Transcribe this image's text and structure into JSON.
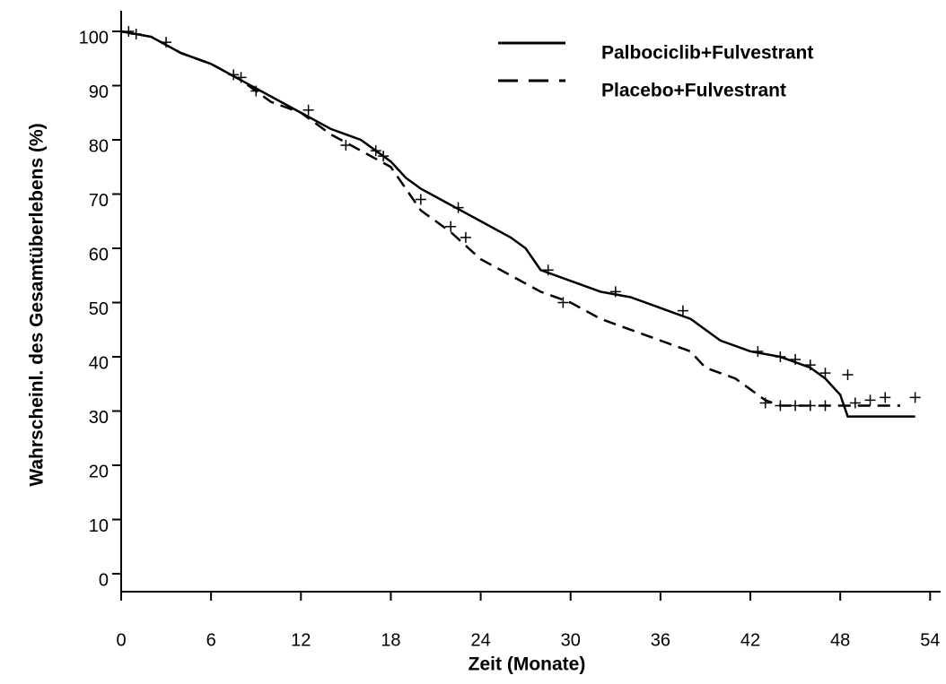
{
  "chart_data": {
    "type": "line",
    "step_curve": true,
    "xlabel": "Zeit (Monate)",
    "ylabel": "Wahrscheinl.  des Gesamtüberlebens  (%)",
    "xlim": [
      0,
      54.7
    ],
    "ylim": [
      -3.3,
      103.8
    ],
    "xticks": [
      0,
      6,
      12,
      18,
      24,
      30,
      36,
      42,
      48,
      54
    ],
    "yticks": [
      0,
      10,
      20,
      30,
      40,
      50,
      60,
      70,
      80,
      90,
      100
    ],
    "legend": "top-right",
    "series": [
      {
        "name": "Palbociclib+Fulvestrant",
        "color": "#000000",
        "dash": "solid",
        "x": [
          0,
          2,
          4,
          6,
          8,
          10,
          12,
          14,
          16,
          18,
          19,
          20,
          22,
          24,
          26,
          27,
          28,
          30,
          32,
          34,
          36,
          38,
          40,
          42,
          44,
          46,
          47,
          48,
          48.5,
          53
        ],
        "values": [
          100,
          99,
          96,
          94,
          91,
          88,
          85,
          82,
          80,
          76,
          73,
          71,
          68,
          65,
          62,
          60,
          56,
          54,
          52,
          51,
          49,
          47,
          43,
          41,
          40,
          38,
          36,
          33,
          29,
          29
        ],
        "censored_x": [
          1,
          3,
          8,
          12.5,
          17,
          22.5,
          28.5,
          33,
          37.5,
          42.5,
          44,
          45,
          46,
          47,
          48.5
        ],
        "censored_values": [
          99.5,
          98,
          91.5,
          85.5,
          78,
          67.5,
          56,
          52,
          48.5,
          41,
          40,
          39.5,
          38.5,
          37,
          36.7
        ]
      },
      {
        "name": "Placebo+Fulvestrant",
        "color": "#000000",
        "dash": "dashed",
        "x": [
          0,
          2,
          4,
          6,
          8,
          10,
          12,
          14,
          16,
          18,
          19,
          20,
          22,
          24,
          26,
          28,
          30,
          32,
          34,
          36,
          38,
          39,
          41,
          42,
          43,
          44,
          52
        ],
        "values": [
          100,
          99,
          96,
          94,
          91,
          87,
          85,
          81,
          78,
          75,
          71,
          67,
          63,
          58,
          55,
          52,
          50,
          47,
          45,
          43,
          41,
          38,
          36,
          34,
          32,
          31,
          31
        ],
        "censored_x": [
          0.5,
          7.5,
          9,
          15,
          17.5,
          20,
          22,
          23,
          29.5,
          43,
          44,
          45,
          46,
          47,
          49,
          50,
          51,
          53
        ],
        "censored_values": [
          100,
          92,
          89,
          79,
          77,
          69,
          64,
          62,
          50,
          31.5,
          31,
          31,
          31,
          31,
          31.5,
          32,
          32.5,
          32.5
        ]
      }
    ]
  }
}
